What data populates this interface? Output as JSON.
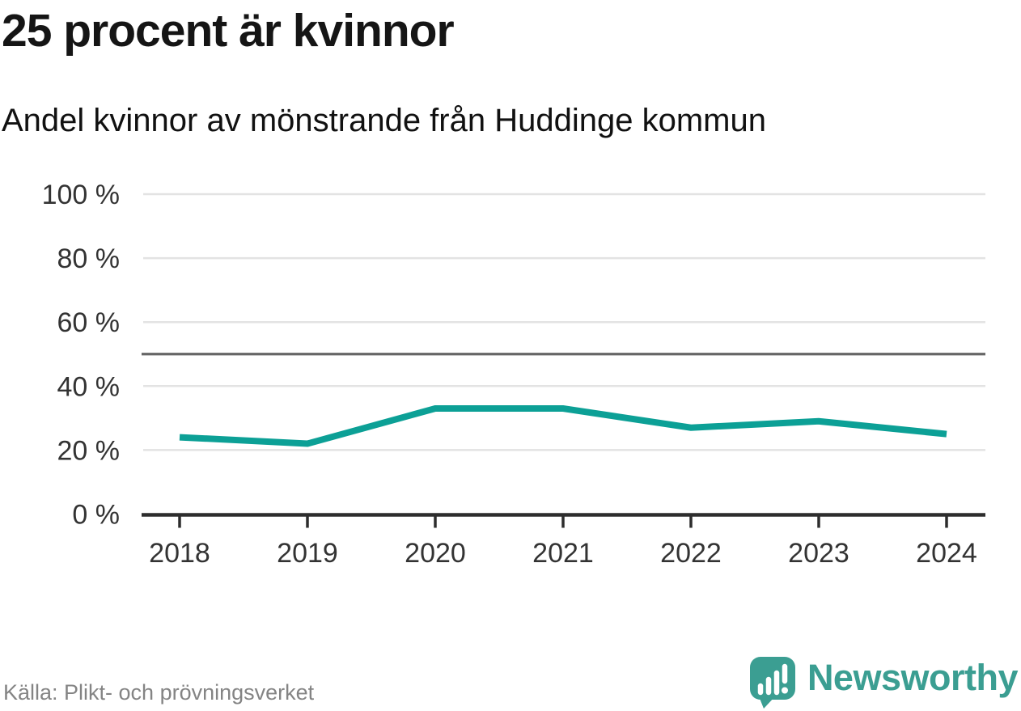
{
  "chart_data": {
    "type": "line",
    "title": "25 procent är kvinnor",
    "subtitle": "Andel kvinnor av mönstrande från Huddinge kommun",
    "x": [
      "2018",
      "2019",
      "2020",
      "2021",
      "2022",
      "2023",
      "2024"
    ],
    "series": [
      {
        "name": "Andel kvinnor",
        "values": [
          24,
          22,
          33,
          33,
          27,
          29,
          25
        ]
      }
    ],
    "unit": "%",
    "ylim": [
      0,
      100
    ],
    "yticks": [
      0,
      20,
      40,
      60,
      80,
      100
    ],
    "ytick_suffix": " %",
    "reference_line": 50,
    "grid": true,
    "legend": "none",
    "line_color": "#0ca096",
    "reference_color": "#666666",
    "grid_color": "#e3e3e3",
    "axis_color": "#2d2d2d",
    "label_color": "#333333"
  },
  "footer": {
    "source": "Källa: Plikt- och prövningsverket",
    "brand": "Newsworthy",
    "brand_color": "#3b9e92"
  }
}
